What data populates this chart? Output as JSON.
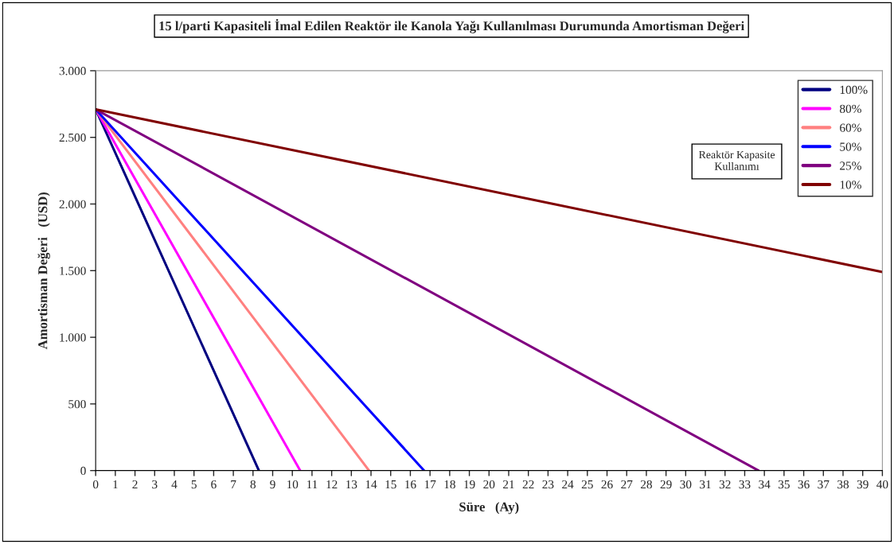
{
  "chart_data": {
    "type": "line",
    "title": "15 l/parti Kapasiteli İmal Edilen Reaktör ile Kanola Yağı Kullanılması Durumunda Amortisman Değeri",
    "xlabel": "Süre   (Ay)",
    "ylabel": "Amortisman Değeri   (USD)",
    "legend_title": "Reaktör Kapasite\nKullanımı",
    "series": [
      {
        "name": "100%",
        "color": "#000080",
        "x": [
          0,
          8.3
        ],
        "values": [
          2710,
          0
        ]
      },
      {
        "name": "80%",
        "color": "#ff00ff",
        "x": [
          0,
          10.4
        ],
        "values": [
          2710,
          0
        ]
      },
      {
        "name": "60%",
        "color": "#ff8080",
        "x": [
          0,
          13.9
        ],
        "values": [
          2710,
          0
        ]
      },
      {
        "name": "50%",
        "color": "#0000ff",
        "x": [
          0,
          16.7
        ],
        "values": [
          2710,
          0
        ]
      },
      {
        "name": "25%",
        "color": "#800080",
        "x": [
          0,
          33.7
        ],
        "values": [
          2710,
          0
        ]
      },
      {
        "name": "10%",
        "color": "#800000",
        "x": [
          0,
          40
        ],
        "values": [
          2710,
          1490
        ]
      }
    ],
    "xlim": [
      0,
      40
    ],
    "xticks": [
      0,
      1,
      2,
      3,
      4,
      5,
      6,
      7,
      8,
      9,
      10,
      11,
      12,
      13,
      14,
      15,
      16,
      17,
      18,
      19,
      20,
      21,
      22,
      23,
      24,
      25,
      26,
      27,
      28,
      29,
      30,
      31,
      32,
      33,
      34,
      35,
      36,
      37,
      38,
      39,
      40
    ],
    "ylim": [
      0,
      3000
    ],
    "yticks": [
      {
        "value": 0,
        "label": "0"
      },
      {
        "value": 500,
        "label": "500"
      },
      {
        "value": 1000,
        "label": "1.000"
      },
      {
        "value": 1500,
        "label": "1.500"
      },
      {
        "value": 2000,
        "label": "2.000"
      },
      {
        "value": 2500,
        "label": "2.500"
      },
      {
        "value": 3000,
        "label": "3.000"
      }
    ],
    "grid": false,
    "legend": "top right",
    "marker": "none",
    "line_style": "solid"
  }
}
